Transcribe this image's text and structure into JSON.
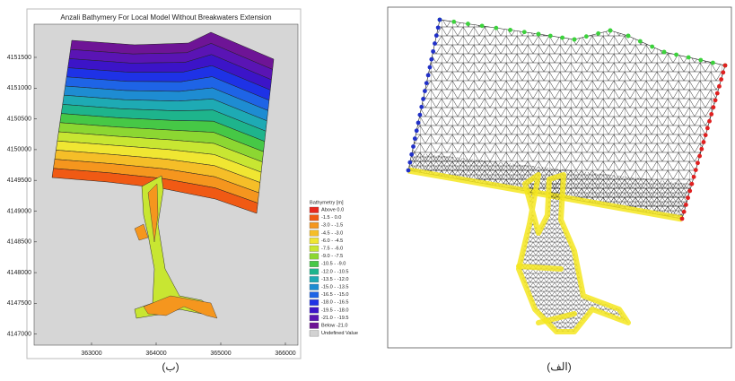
{
  "left_panel": {
    "title": "Anzali Bathymery For Local Model Without Breakwaters Extension",
    "y_ticks": [
      "4151500",
      "4151000",
      "4150500",
      "4150000",
      "4149500",
      "4149000",
      "4148500",
      "4148000",
      "4147500",
      "4147000"
    ],
    "x_ticks": [
      "363000",
      "364000",
      "365000",
      "366000"
    ],
    "legend": {
      "title": "Bathymetry [m]",
      "entries": [
        {
          "label": "Above   0.0",
          "color": "#e8281e"
        },
        {
          "label": "-1.5 -   0.0",
          "color": "#f05a14"
        },
        {
          "label": "-3.0 -  -1.5",
          "color": "#f5961e"
        },
        {
          "label": "-4.5 -  -3.0",
          "color": "#f5be28"
        },
        {
          "label": "-6.0 -  -4.5",
          "color": "#f0e632"
        },
        {
          "label": "-7.5 -  -6.0",
          "color": "#c8e632"
        },
        {
          "label": "-9.0 -  -7.5",
          "color": "#8cd732"
        },
        {
          "label": "-10.5 -  -9.0",
          "color": "#46c846"
        },
        {
          "label": "-12.0 - -10.5",
          "color": "#1eb48c"
        },
        {
          "label": "-13.5 - -12.0",
          "color": "#1eaab4"
        },
        {
          "label": "-15.0 - -13.5",
          "color": "#1e8cd2"
        },
        {
          "label": "-16.5 - -15.0",
          "color": "#1e64e6"
        },
        {
          "label": "-18.0 - -16.5",
          "color": "#1e32e6"
        },
        {
          "label": "-19.5 - -18.0",
          "color": "#3c14c8"
        },
        {
          "label": "-21.0 - -19.5",
          "color": "#5a14b4"
        },
        {
          "label": "Below -21.0",
          "color": "#6e1496"
        },
        {
          "label": "Undefined Value",
          "color": "#d2d2d2"
        }
      ]
    },
    "caption": "(ب)"
  },
  "right_panel": {
    "caption": "(الف)"
  }
}
